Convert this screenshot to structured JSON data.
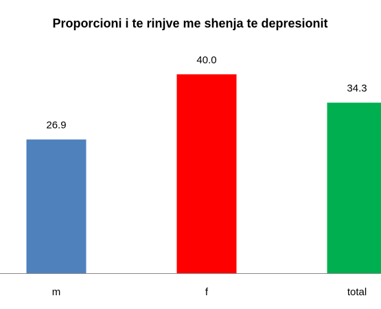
{
  "chart_data": {
    "type": "bar",
    "title": "Proporcioni i te rinjve me shenja te depresionit",
    "categories": [
      "m",
      "f",
      "total"
    ],
    "values": [
      26.9,
      40.0,
      34.3
    ],
    "value_labels": [
      "26.9",
      "40.0",
      "34.3"
    ],
    "colors": [
      "#4f81bd",
      "#ff0000",
      "#00b050"
    ]
  }
}
